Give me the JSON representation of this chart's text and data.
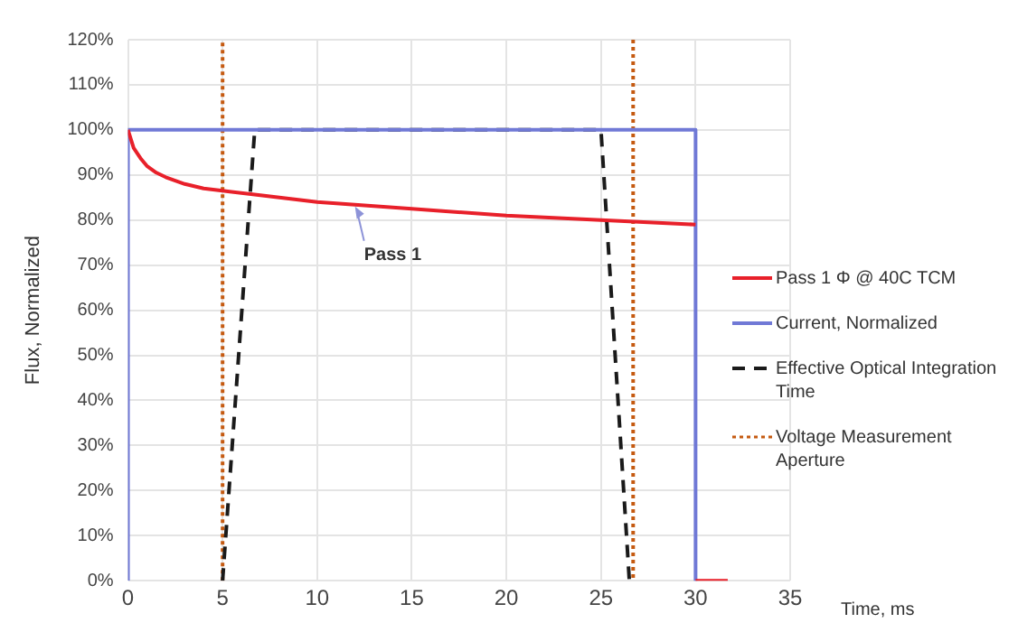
{
  "chart_data": {
    "type": "line",
    "xlabel": "Time, ms",
    "ylabel": "Flux, Normalized",
    "xlim": [
      0,
      35
    ],
    "xticks": [
      0,
      5,
      10,
      15,
      20,
      25,
      30,
      35
    ],
    "ylim": [
      0,
      120
    ],
    "yticks": [
      {
        "value": 0,
        "label": "0%"
      },
      {
        "value": 10,
        "label": "10%"
      },
      {
        "value": 20,
        "label": "20%"
      },
      {
        "value": 30,
        "label": "30%"
      },
      {
        "value": 40,
        "label": "40%"
      },
      {
        "value": 50,
        "label": "50%"
      },
      {
        "value": 60,
        "label": "60%"
      },
      {
        "value": 70,
        "label": "70%"
      },
      {
        "value": 80,
        "label": "80%"
      },
      {
        "value": 90,
        "label": "90%"
      },
      {
        "value": 100,
        "label": "100%"
      },
      {
        "value": 110,
        "label": "110%"
      },
      {
        "value": 120,
        "label": "120%"
      }
    ],
    "grid": true,
    "legend": "right",
    "marker": "none",
    "series": [
      {
        "name": "Pass 1 Φ @ 40C TCM",
        "color": "#e8202a",
        "line_style": "solid",
        "x": [
          0,
          0.3,
          0.7,
          1,
          1.5,
          2,
          3,
          4,
          5,
          7,
          10,
          15,
          20,
          25,
          30
        ],
        "values": [
          100,
          96,
          93.5,
          92,
          90.5,
          89.5,
          88,
          87,
          86.5,
          85.5,
          84,
          82.5,
          81,
          80,
          79
        ]
      },
      {
        "color": "#e8202a",
        "line_style": "solid",
        "x": [
          30,
          31.7
        ],
        "values": [
          0,
          0
        ]
      },
      {
        "name": "Current, Normalized",
        "color": "#7079d6",
        "line_style": "solid",
        "x": [
          0,
          0,
          30,
          30
        ],
        "values": [
          0,
          100,
          100,
          0
        ]
      },
      {
        "name": "Effective Optical Integration Time",
        "color": "#1a1a1a",
        "line_style": "dashed",
        "x": [
          5,
          6.7,
          25,
          26.5
        ],
        "values": [
          0,
          100,
          100,
          0
        ]
      },
      {
        "name": "Voltage Measurement Aperture",
        "color": "#c55a11",
        "line_style": "dotted",
        "x": [
          5,
          5
        ],
        "values": [
          0,
          120
        ]
      },
      {
        "color": "#c55a11",
        "line_style": "dotted",
        "x": [
          26.7,
          26.7
        ],
        "values": [
          120,
          0
        ]
      }
    ],
    "annotations": [
      {
        "text": "Pass 1",
        "x": 12,
        "y": 83
      }
    ]
  }
}
